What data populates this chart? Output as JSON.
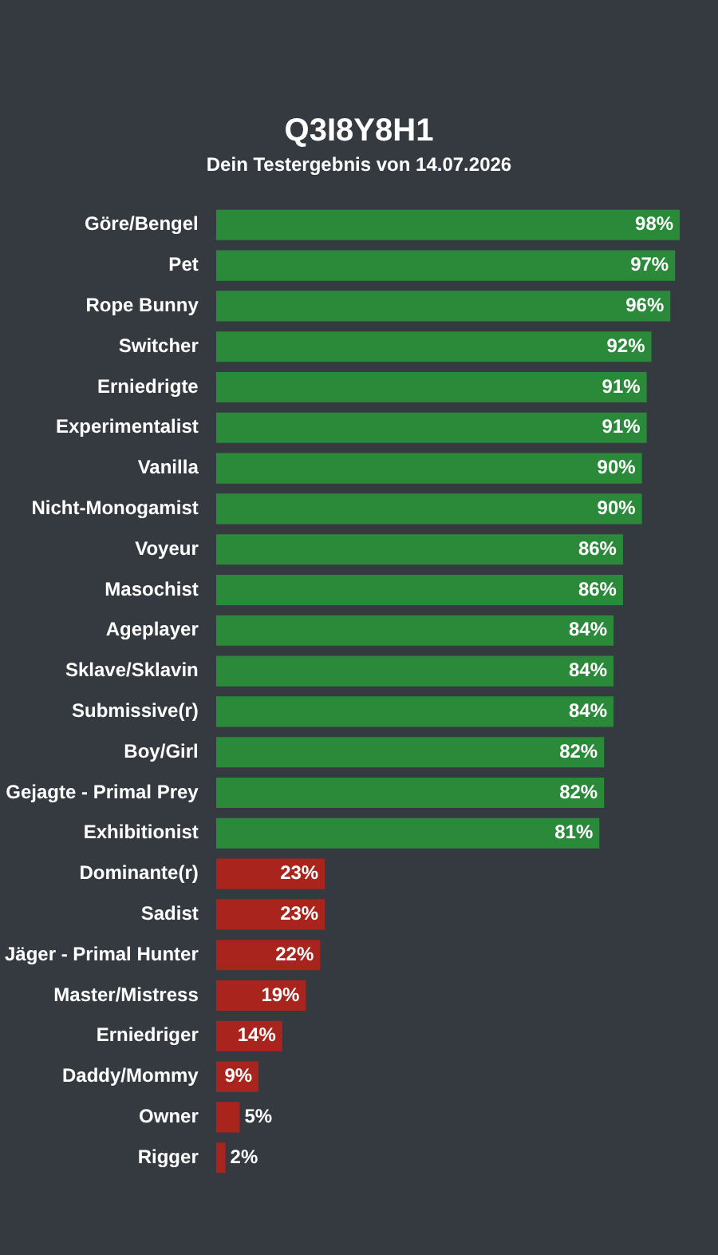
{
  "chart_data": {
    "type": "bar",
    "orientation": "horizontal",
    "title": "Q3I8Y8H1",
    "subtitle": "Dein Testergebnis von 14.07.2026",
    "categories": [
      "Göre/Bengel",
      "Pet",
      "Rope Bunny",
      "Switcher",
      "Erniedrigte",
      "Experimentalist",
      "Vanilla",
      "Nicht-Monogamist",
      "Voyeur",
      "Masochist",
      "Ageplayer",
      "Sklave/Sklavin",
      "Submissive(r)",
      "Boy/Girl",
      "Gejagte - Primal Prey",
      "Exhibitionist",
      "Dominante(r)",
      "Sadist",
      "Jäger - Primal Hunter",
      "Master/Mistress",
      "Erniedriger",
      "Daddy/Mommy",
      "Owner",
      "Rigger"
    ],
    "values": [
      98,
      97,
      96,
      92,
      91,
      91,
      90,
      90,
      86,
      86,
      84,
      84,
      84,
      82,
      82,
      81,
      23,
      23,
      22,
      19,
      14,
      9,
      5,
      2
    ],
    "value_labels": [
      "98%",
      "97%",
      "96%",
      "92%",
      "91%",
      "91%",
      "90%",
      "90%",
      "86%",
      "86%",
      "84%",
      "84%",
      "84%",
      "82%",
      "82%",
      "81%",
      "23%",
      "23%",
      "22%",
      "19%",
      "14%",
      "9%",
      "5%",
      "2%"
    ],
    "colors": [
      "#2a8a3a",
      "#2a8a3a",
      "#2a8a3a",
      "#2a8a3a",
      "#2a8a3a",
      "#2a8a3a",
      "#2a8a3a",
      "#2a8a3a",
      "#2a8a3a",
      "#2a8a3a",
      "#2a8a3a",
      "#2a8a3a",
      "#2a8a3a",
      "#2a8a3a",
      "#2a8a3a",
      "#2a8a3a",
      "#a8241c",
      "#a8241c",
      "#a8241c",
      "#a8241c",
      "#a8241c",
      "#a8241c",
      "#a8241c",
      "#a8241c"
    ],
    "legend": false
  }
}
